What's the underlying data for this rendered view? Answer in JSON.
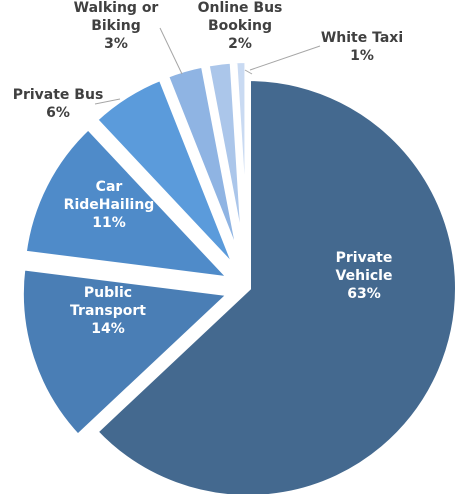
{
  "chart_data": {
    "type": "pie",
    "title": "",
    "slices": [
      {
        "label": [
          "Private",
          "Vehicle"
        ],
        "percent_label": "63%",
        "value": 63,
        "color": "#44698f"
      },
      {
        "label": [
          "Public",
          "Transport"
        ],
        "percent_label": "14%",
        "value": 14,
        "color": "#4a7eb5"
      },
      {
        "label": [
          "Car",
          "RideHailing"
        ],
        "percent_label": "11%",
        "value": 11,
        "color": "#4f8bc9"
      },
      {
        "label": [
          "Private Bus"
        ],
        "percent_label": "6%",
        "value": 6,
        "color": "#5b9bdb"
      },
      {
        "label": [
          "Walking or",
          "Biking"
        ],
        "percent_label": "3%",
        "value": 3,
        "color": "#8fb4e3"
      },
      {
        "label": [
          "Online Bus",
          "Booking"
        ],
        "percent_label": "2%",
        "value": 2,
        "color": "#abc6ea"
      },
      {
        "label": [
          "White Taxi"
        ],
        "percent_label": "1%",
        "value": 1,
        "color": "#c9daf2"
      }
    ]
  }
}
